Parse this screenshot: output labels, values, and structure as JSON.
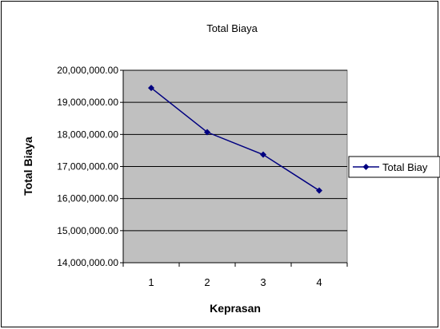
{
  "chart_data": {
    "type": "line",
    "title": "Total Biaya",
    "xlabel": "Keprasan",
    "ylabel": "Total Biaya",
    "categories": [
      "1",
      "2",
      "3",
      "4"
    ],
    "series": [
      {
        "name": "Total Biay",
        "values": [
          19450000,
          18070000,
          17370000,
          16250000
        ]
      }
    ],
    "ylim": [
      14000000,
      20000000
    ],
    "ytick_step": 1000000,
    "yticks": [
      "14,000,000.00",
      "15,000,000.00",
      "16,000,000.00",
      "17,000,000.00",
      "18,000,000.00",
      "19,000,000.00",
      "20,000,000.00"
    ],
    "grid": true,
    "legend_position": "right",
    "colors": {
      "series": "#000080",
      "plot_bg": "#c0c0c0",
      "gridline": "#000000"
    }
  }
}
